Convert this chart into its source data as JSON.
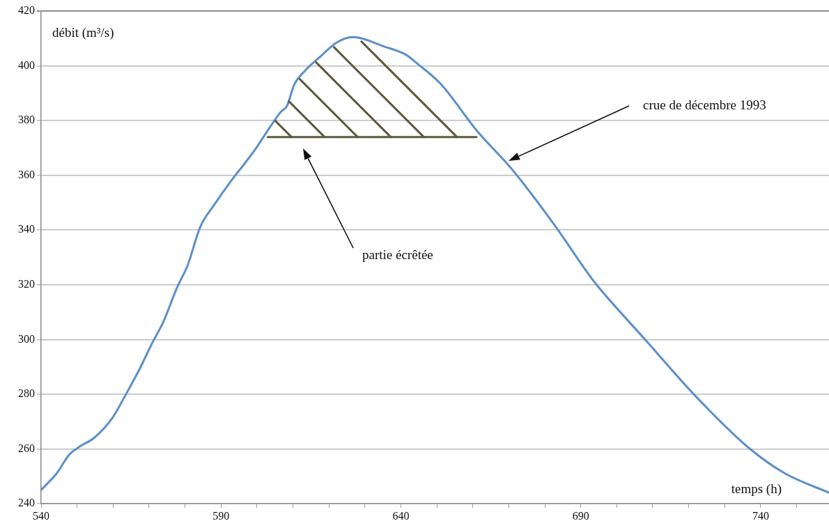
{
  "chart_data": {
    "type": "line",
    "xlabel": "temps (h)",
    "ylabel": "débit (m³/s)",
    "xlim": [
      540,
      759
    ],
    "ylim": [
      240,
      420
    ],
    "xticks": [
      540,
      {
        "value": 550,
        "label": null
      },
      {
        "value": 560,
        "label": null
      },
      {
        "value": 570,
        "label": null
      },
      {
        "value": 580,
        "label": null
      },
      590,
      {
        "value": 600,
        "label": null
      },
      {
        "value": 610,
        "label": null
      },
      {
        "value": 620,
        "label": null
      },
      {
        "value": 630,
        "label": null
      },
      640,
      {
        "value": 650,
        "label": null
      },
      {
        "value": 660,
        "label": null
      },
      {
        "value": 670,
        "label": null
      },
      {
        "value": 680,
        "label": null
      },
      690,
      {
        "value": 700,
        "label": null
      },
      {
        "value": 710,
        "label": null
      },
      {
        "value": 720,
        "label": null
      },
      {
        "value": 730,
        "label": null
      },
      740,
      {
        "value": 750,
        "label": null
      }
    ],
    "yticks": [
      240,
      260,
      280,
      300,
      320,
      340,
      360,
      380,
      400,
      420
    ],
    "grid": "y",
    "legend": false,
    "line_style": "solid",
    "marker": "none",
    "series": [
      {
        "color": "#5b8fc9",
        "x": [
          540,
          544.3,
          547.9,
          550.9,
          554.7,
          559.9,
          563.6,
          567.3,
          571,
          574,
          577.8,
          580.7,
          584.2,
          588,
          593.1,
          596.1,
          599.8,
          602.8,
          606.5,
          608.4,
          610.3,
          613.2,
          617.7,
          622.1,
          626.6,
          635.5,
          641.5,
          644.4,
          651,
          661.3,
          670.7,
          682.6,
          692.1,
          694.4,
          708.2,
          721.4,
          736.6,
          746.8,
          759
        ],
        "values": [
          245,
          251,
          258,
          261,
          264,
          271.5,
          280,
          289,
          299,
          306.5,
          319,
          327,
          341,
          349,
          358.5,
          363.5,
          370,
          376,
          383,
          385.5,
          393,
          398,
          403.5,
          408.5,
          410.5,
          407,
          404,
          401,
          393.5,
          376,
          362.5,
          342,
          324,
          320,
          299.5,
          280,
          260.5,
          251,
          244
        ]
      },
      {
        "type": "line",
        "color": "#5c5a3c",
        "x": [
          603,
          661
        ],
        "values": [
          374,
          374
        ]
      }
    ],
    "annotations": [
      "crue de décembre 1993",
      "partie écrêtée"
    ]
  }
}
